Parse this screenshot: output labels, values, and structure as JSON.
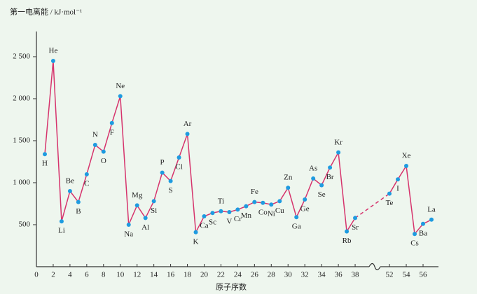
{
  "chart_data": {
    "type": "line",
    "title": "第一电离能 / kJ·mol⁻¹",
    "x_label": "原子序数",
    "x": [
      1,
      2,
      3,
      4,
      5,
      6,
      7,
      8,
      9,
      10,
      11,
      12,
      13,
      14,
      15,
      16,
      17,
      18,
      19,
      20,
      21,
      22,
      23,
      24,
      25,
      26,
      27,
      28,
      29,
      30,
      31,
      32,
      33,
      34,
      35,
      36,
      37,
      38,
      52,
      53,
      54,
      55,
      56,
      57
    ],
    "point_labels": [
      "H",
      "He",
      "Li",
      "Be",
      "B",
      "C",
      "N",
      "O",
      "F",
      "Ne",
      "Na",
      "Mg",
      "Al",
      "Si",
      "P",
      "S",
      "Cl",
      "Ar",
      "K",
      "Ca",
      "Sc",
      "Ti",
      "V",
      "Cr",
      "Mn",
      "Fe",
      "Co",
      "Ni",
      "Cu",
      "Zn",
      "Ga",
      "Ge",
      "As",
      "Se",
      "Br",
      "Kr",
      "Rb",
      "Sr",
      "Te",
      "I",
      "Xe",
      "Cs",
      "Ba",
      "La"
    ],
    "series": [
      {
        "color": "#d6336c",
        "marker_color": "#1e9be0",
        "values": [
          1340,
          2450,
          540,
          900,
          770,
          1100,
          1450,
          1370,
          1710,
          2030,
          500,
          730,
          580,
          780,
          1120,
          1020,
          1300,
          1580,
          410,
          600,
          640,
          660,
          650,
          680,
          720,
          770,
          760,
          740,
          780,
          940,
          590,
          800,
          1050,
          970,
          1180,
          1360,
          420,
          580,
          870,
          1040,
          1200,
          390,
          510,
          560
        ]
      }
    ],
    "xlim": [
      0,
      57
    ],
    "x_break": [
      39,
      51
    ],
    "xticks": [
      0,
      2,
      4,
      6,
      8,
      10,
      12,
      14,
      16,
      18,
      20,
      22,
      24,
      26,
      28,
      30,
      32,
      34,
      36,
      38,
      52,
      54,
      56
    ],
    "ylim": [
      0,
      2800
    ],
    "yticks": [
      500,
      {
        "value": 1000,
        "label": "1 000"
      },
      {
        "value": 1500,
        "label": "1 500"
      },
      {
        "value": 2000,
        "label": "2 000"
      },
      {
        "value": 2500,
        "label": "2 500"
      }
    ]
  }
}
